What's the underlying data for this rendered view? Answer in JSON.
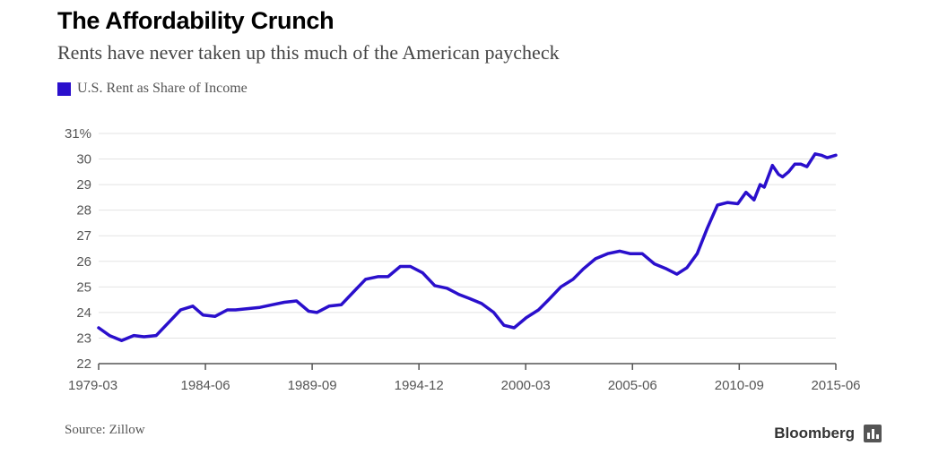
{
  "header": {
    "title": "The Affordability Crunch",
    "subtitle": "Rents have never taken up this much of the American paycheck"
  },
  "legend": {
    "label": "U.S. Rent as Share of Income",
    "color": "#2a0fcc"
  },
  "footer": {
    "source": "Source: Zillow",
    "brand": "Bloomberg",
    "brand_icon": "bar-chart-icon"
  },
  "chart_data": {
    "type": "line",
    "title": "The Affordability Crunch",
    "subtitle": "Rents have never taken up this much of the American paycheck",
    "xlabel": "",
    "ylabel": "",
    "x_range": [
      1979.17,
      2015.42
    ],
    "ylim": [
      22,
      31
    ],
    "y_ticks": [
      22,
      23,
      24,
      25,
      26,
      27,
      28,
      29,
      30,
      31
    ],
    "y_tick_labels": [
      "22",
      "23",
      "24",
      "25",
      "26",
      "27",
      "28",
      "29",
      "30",
      "31%"
    ],
    "x_ticks": [
      {
        "label": "1979-03",
        "x": 1979.17
      },
      {
        "label": "1984-06",
        "x": 1984.42
      },
      {
        "label": "1989-09",
        "x": 1989.67
      },
      {
        "label": "1994-12",
        "x": 1994.92
      },
      {
        "label": "2000-03",
        "x": 2000.17
      },
      {
        "label": "2005-06",
        "x": 2005.42
      },
      {
        "label": "2010-09",
        "x": 2010.67
      },
      {
        "label": "2015-06",
        "x": 2015.42
      }
    ],
    "grid": true,
    "legend_position": "top-left",
    "series": [
      {
        "name": "U.S. Rent as Share of Income",
        "color": "#2a0fcc",
        "x": [
          1979.17,
          1979.7,
          1980.3,
          1980.9,
          1981.4,
          1982.0,
          1982.6,
          1983.2,
          1983.8,
          1984.3,
          1984.9,
          1985.5,
          1985.9,
          1986.5,
          1987.1,
          1987.7,
          1988.3,
          1988.9,
          1989.5,
          1989.9,
          1990.5,
          1991.1,
          1991.7,
          1992.3,
          1992.9,
          1993.4,
          1994.0,
          1994.5,
          1995.1,
          1995.7,
          1996.3,
          1996.9,
          1997.4,
          1998.0,
          1998.6,
          1999.1,
          1999.6,
          2000.2,
          2000.8,
          2001.3,
          2001.9,
          2002.5,
          2003.0,
          2003.6,
          2004.2,
          2004.8,
          2005.3,
          2005.9,
          2006.5,
          2007.1,
          2007.6,
          2008.1,
          2008.6,
          2009.1,
          2009.6,
          2010.1,
          2010.6,
          2011.0,
          2011.4,
          2011.7,
          2011.9,
          2012.3,
          2012.6,
          2012.8,
          2013.1,
          2013.4,
          2013.7,
          2014.0,
          2014.4,
          2014.7,
          2015.0,
          2015.42
        ],
        "y": [
          23.4,
          23.1,
          22.9,
          23.1,
          23.05,
          23.1,
          23.6,
          24.1,
          24.25,
          23.9,
          23.85,
          24.1,
          24.1,
          24.15,
          24.2,
          24.3,
          24.4,
          24.45,
          24.05,
          24.0,
          24.25,
          24.3,
          24.8,
          25.3,
          25.4,
          25.4,
          25.8,
          25.8,
          25.55,
          25.05,
          24.95,
          24.7,
          24.55,
          24.35,
          24.0,
          23.5,
          23.4,
          23.8,
          24.1,
          24.5,
          25.0,
          25.3,
          25.7,
          26.1,
          26.3,
          26.4,
          26.3,
          26.3,
          25.9,
          25.7,
          25.5,
          25.75,
          26.3,
          27.3,
          28.2,
          28.3,
          28.25,
          28.7,
          28.4,
          29.0,
          28.9,
          29.75,
          29.4,
          29.3,
          29.5,
          29.8,
          29.8,
          29.7,
          30.2,
          30.15,
          30.05,
          30.15
        ]
      }
    ]
  }
}
